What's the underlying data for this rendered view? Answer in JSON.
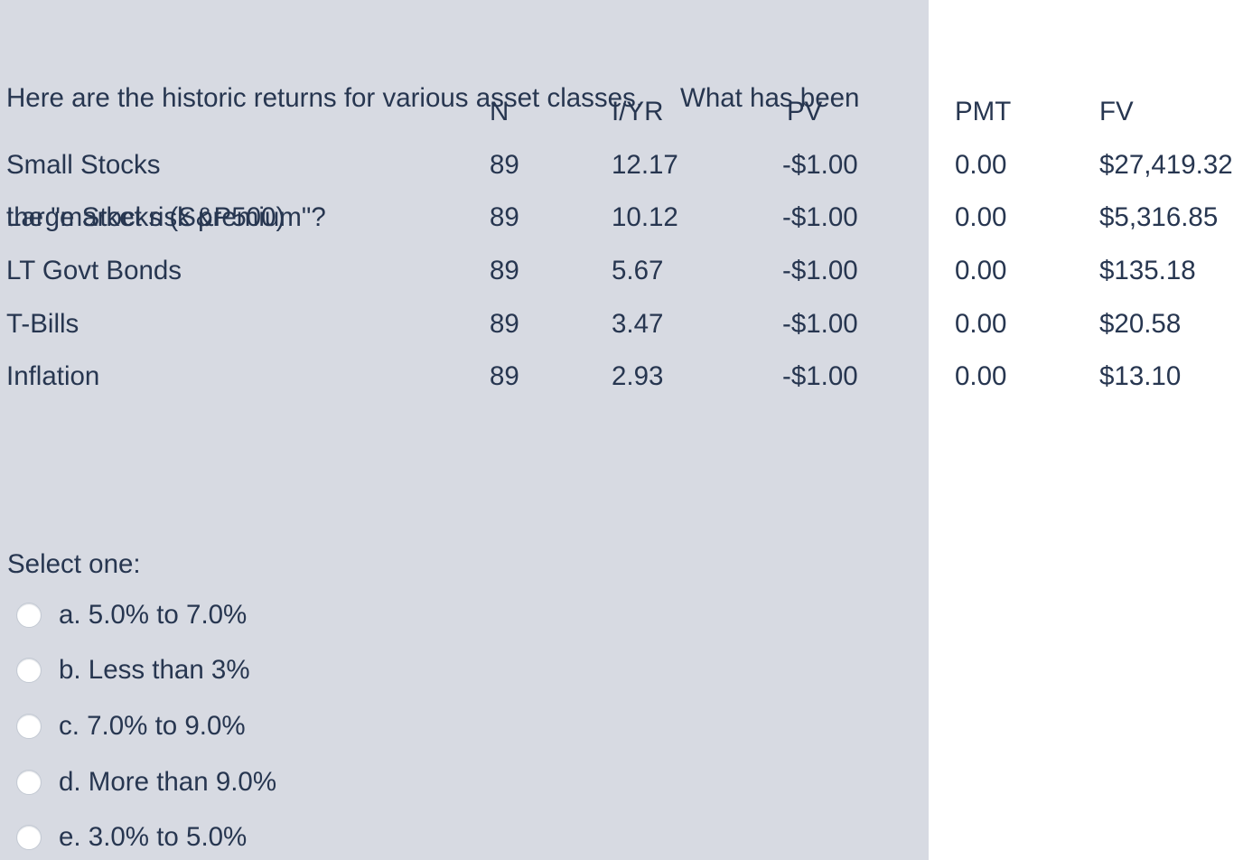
{
  "page": {
    "panel_color": "#d7dae2",
    "right_background": "#ffffff",
    "text_color": "#273650"
  },
  "question": {
    "line1": "Here are the historic returns for various asset classes.     What has been",
    "line2": "the \"market risk premium\"?"
  },
  "table": {
    "columns": [
      "",
      "N",
      "I/YR",
      "PV",
      "PMT",
      "FV"
    ],
    "rows": [
      {
        "label": "Small Stocks",
        "n": "89",
        "iyr": "12.17",
        "pv": "-$1.00",
        "pmt": "0.00",
        "fv": "$27,419.32"
      },
      {
        "label": "Large Stocks (S&P500)",
        "n": "89",
        "iyr": "10.12",
        "pv": "-$1.00",
        "pmt": "0.00",
        "fv": "$5,316.85"
      },
      {
        "label": "LT Govt Bonds",
        "n": "89",
        "iyr": "5.67",
        "pv": "-$1.00",
        "pmt": "0.00",
        "fv": "$135.18"
      },
      {
        "label": "T-Bills",
        "n": "89",
        "iyr": "3.47",
        "pv": "-$1.00",
        "pmt": "0.00",
        "fv": "$20.58"
      },
      {
        "label": "Inflation",
        "n": "89",
        "iyr": "2.93",
        "pv": "-$1.00",
        "pmt": "0.00",
        "fv": "$13.10"
      }
    ]
  },
  "answer": {
    "prompt": "Select one:",
    "options": [
      {
        "key": "a",
        "label": "a. 5.0% to 7.0%",
        "selected": false
      },
      {
        "key": "b",
        "label": "b. Less than 3%",
        "selected": false
      },
      {
        "key": "c",
        "label": "c. 7.0% to 9.0%",
        "selected": false
      },
      {
        "key": "d",
        "label": "d. More than 9.0%",
        "selected": false
      },
      {
        "key": "e",
        "label": "e. 3.0% to 5.0%",
        "selected": false
      }
    ]
  }
}
